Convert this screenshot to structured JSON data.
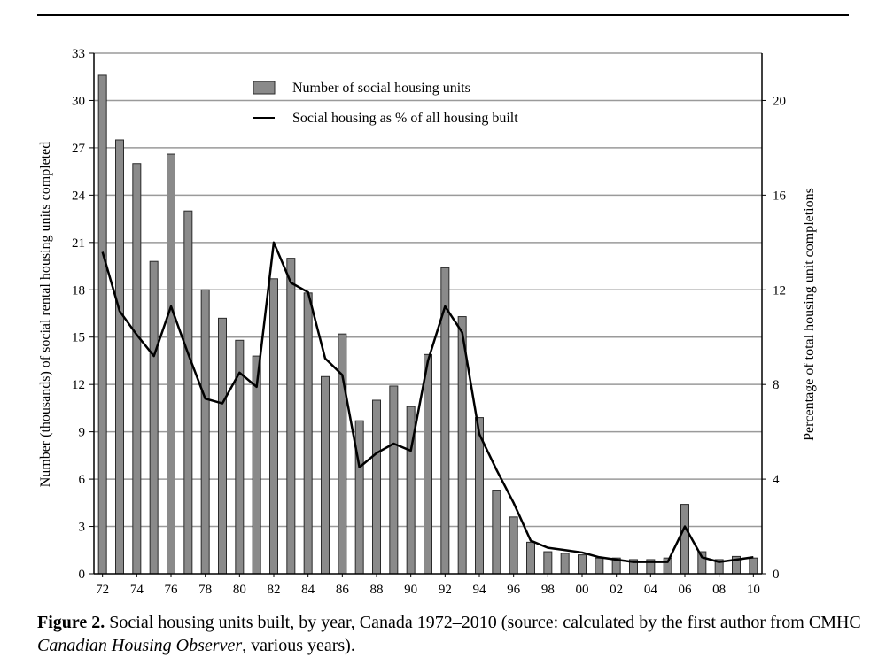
{
  "chart_data": {
    "type": "bar+line",
    "x_tick_labels": [
      "72",
      "74",
      "76",
      "78",
      "80",
      "82",
      "84",
      "86",
      "88",
      "90",
      "92",
      "94",
      "96",
      "98",
      "00",
      "02",
      "04",
      "06",
      "08",
      "10"
    ],
    "years": [
      "72",
      "73",
      "74",
      "75",
      "76",
      "77",
      "78",
      "79",
      "80",
      "81",
      "82",
      "83",
      "84",
      "85",
      "86",
      "87",
      "88",
      "89",
      "90",
      "91",
      "92",
      "93",
      "94",
      "95",
      "96",
      "97",
      "98",
      "99",
      "00",
      "01",
      "02",
      "03",
      "04",
      "05",
      "06",
      "07",
      "08",
      "09",
      "10"
    ],
    "series": [
      {
        "name": "Number of social housing units",
        "kind": "bar",
        "axis": "left",
        "values": [
          31.6,
          27.5,
          26.0,
          19.8,
          26.6,
          23.0,
          18.0,
          16.2,
          14.8,
          13.8,
          18.7,
          20.0,
          17.8,
          12.5,
          15.2,
          9.7,
          11.0,
          11.9,
          10.6,
          13.9,
          19.4,
          16.3,
          9.9,
          5.3,
          3.6,
          2.0,
          1.4,
          1.3,
          1.2,
          1.0,
          1.0,
          0.9,
          0.9,
          1.0,
          4.4,
          1.4,
          0.9,
          1.1,
          1.0
        ]
      },
      {
        "name": "Social housing as % of all housing built",
        "kind": "line",
        "axis": "right",
        "values": [
          13.6,
          11.1,
          10.1,
          9.2,
          11.3,
          9.3,
          7.4,
          7.2,
          8.5,
          7.9,
          14.0,
          12.3,
          11.9,
          9.1,
          8.4,
          4.5,
          5.1,
          5.5,
          5.2,
          9.0,
          11.3,
          10.2,
          5.9,
          4.4,
          3.0,
          1.4,
          1.1,
          1.0,
          0.9,
          0.7,
          0.6,
          0.5,
          0.5,
          0.5,
          2.0,
          0.7,
          0.5,
          0.6,
          0.7
        ]
      }
    ],
    "left_axis": {
      "label": "Number (thousands) of social rental housing units completed",
      "min": 0,
      "max": 33,
      "ticks": [
        "0",
        "3",
        "6",
        "9",
        "12",
        "15",
        "18",
        "21",
        "24",
        "27",
        "30",
        "33"
      ]
    },
    "right_axis": {
      "label": "Percentage of total housing unit completions",
      "min": 0,
      "max": 22,
      "ticks": [
        "0",
        "4",
        "8",
        "12",
        "16",
        "20"
      ]
    },
    "grid": true,
    "legend_position": "top-center"
  },
  "caption": {
    "figure_label": "Figure 2.",
    "text_part1": " Social housing units built, by year, Canada 1972–2010 (source: calculated by the first author from CMHC ",
    "italic_source": "Canadian Housing Observer",
    "text_part2": ", various years)."
  },
  "colors": {
    "bar_fill": "#8a8a8a",
    "bar_stroke": "#2a2a2a",
    "line": "#000000",
    "grid": "#9a9a9a"
  }
}
